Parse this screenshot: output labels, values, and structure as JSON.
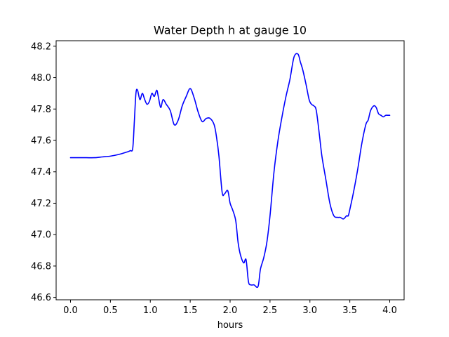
{
  "chart_data": {
    "type": "line",
    "title": "Water Depth h at gauge 10",
    "xlabel": "hours",
    "ylabel": "",
    "xlim": [
      -0.18,
      4.18
    ],
    "ylim": [
      46.585,
      48.235
    ],
    "grid": false,
    "x_ticks": [
      {
        "value": 0.0,
        "label": "0.0"
      },
      {
        "value": 0.5,
        "label": "0.5"
      },
      {
        "value": 1.0,
        "label": "1.0"
      },
      {
        "value": 1.5,
        "label": "1.5"
      },
      {
        "value": 2.0,
        "label": "2.0"
      },
      {
        "value": 2.5,
        "label": "2.5"
      },
      {
        "value": 3.0,
        "label": "3.0"
      },
      {
        "value": 3.5,
        "label": "3.5"
      },
      {
        "value": 4.0,
        "label": "4.0"
      }
    ],
    "y_ticks": [
      {
        "value": 46.6,
        "label": "46.6"
      },
      {
        "value": 46.8,
        "label": "46.8"
      },
      {
        "value": 47.0,
        "label": "47.0"
      },
      {
        "value": 47.2,
        "label": "47.2"
      },
      {
        "value": 47.4,
        "label": "47.4"
      },
      {
        "value": 47.6,
        "label": "47.6"
      },
      {
        "value": 47.8,
        "label": "47.8"
      },
      {
        "value": 48.0,
        "label": "48.0"
      },
      {
        "value": 48.2,
        "label": "48.2"
      }
    ],
    "series": [
      {
        "color": "#0000ff",
        "x": [
          0.0,
          0.1,
          0.2,
          0.3,
          0.4,
          0.5,
          0.6,
          0.7,
          0.75,
          0.78,
          0.8,
          0.82,
          0.84,
          0.87,
          0.9,
          0.93,
          0.96,
          0.99,
          1.02,
          1.05,
          1.08,
          1.1,
          1.13,
          1.16,
          1.2,
          1.25,
          1.3,
          1.35,
          1.4,
          1.45,
          1.5,
          1.55,
          1.6,
          1.65,
          1.7,
          1.75,
          1.8,
          1.83,
          1.86,
          1.9,
          1.93,
          1.97,
          2.0,
          2.03,
          2.07,
          2.1,
          2.13,
          2.17,
          2.2,
          2.23,
          2.26,
          2.3,
          2.35,
          2.38,
          2.42,
          2.46,
          2.5,
          2.55,
          2.6,
          2.65,
          2.7,
          2.75,
          2.8,
          2.85,
          2.88,
          2.91,
          2.95,
          2.99,
          3.02,
          3.05,
          3.08,
          3.12,
          3.15,
          3.2,
          3.25,
          3.3,
          3.35,
          3.38,
          3.42,
          3.46,
          3.48,
          3.5,
          3.55,
          3.6,
          3.65,
          3.7,
          3.73,
          3.76,
          3.8,
          3.83,
          3.86,
          3.89,
          3.92,
          3.95,
          3.98,
          4.0
        ],
        "y": [
          47.49,
          47.49,
          47.49,
          47.49,
          47.495,
          47.5,
          47.51,
          47.525,
          47.535,
          47.55,
          47.72,
          47.9,
          47.92,
          47.86,
          47.9,
          47.86,
          47.83,
          47.85,
          47.9,
          47.88,
          47.92,
          47.88,
          47.81,
          47.86,
          47.83,
          47.79,
          47.7,
          47.73,
          47.82,
          47.88,
          47.93,
          47.87,
          47.78,
          47.72,
          47.74,
          47.74,
          47.7,
          47.62,
          47.5,
          47.27,
          47.26,
          47.28,
          47.2,
          47.16,
          47.09,
          46.95,
          46.87,
          46.82,
          46.84,
          46.7,
          46.68,
          46.68,
          46.67,
          46.78,
          46.85,
          46.95,
          47.12,
          47.4,
          47.6,
          47.75,
          47.88,
          47.99,
          48.13,
          48.15,
          48.1,
          48.05,
          47.96,
          47.86,
          47.83,
          47.82,
          47.79,
          47.63,
          47.5,
          47.35,
          47.2,
          47.12,
          47.11,
          47.11,
          47.1,
          47.12,
          47.12,
          47.16,
          47.28,
          47.42,
          47.58,
          47.7,
          47.73,
          47.79,
          47.82,
          47.81,
          47.77,
          47.76,
          47.75,
          47.76,
          47.76,
          47.76
        ]
      }
    ]
  }
}
